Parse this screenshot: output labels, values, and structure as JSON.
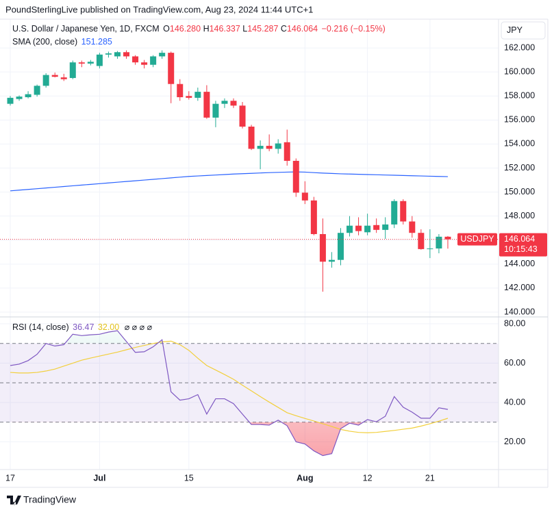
{
  "header": {
    "published": "PoundSterlingLive published on TradingView.com, Aug 23, 2024 11:44 UTC+1",
    "currency": "JPY",
    "footer_logo": "TradingView"
  },
  "legend": {
    "symbol": "U.S. Dollar / Japanese Yen, 1D, FXCM",
    "o_label": "O",
    "open": "146.280",
    "h_label": "H",
    "high": "146.337",
    "l_label": "L",
    "low": "145.287",
    "c_label": "C",
    "close": "146.064",
    "change": "−0.216 (−0.15%)",
    "sma_name": "SMA (200, close)",
    "sma_value": "151.285",
    "rsi_name": "RSI (14, close)",
    "rsi_value": "36.47",
    "rsi_ma_value": "32.00",
    "rsi_extra": "⌀ ⌀ ⌀ ⌀"
  },
  "last_price": {
    "symbol": "USDJPY",
    "price": "146.064",
    "countdown": "10:15:43"
  },
  "chart_data": [
    {
      "type": "candlestick",
      "categories": [
        "17",
        null,
        null,
        null,
        null,
        null,
        null,
        null,
        null,
        null,
        "Jul",
        null,
        null,
        null,
        null,
        null,
        null,
        null,
        null,
        null,
        "15",
        null,
        null,
        null,
        null,
        null,
        null,
        null,
        null,
        null,
        null,
        null,
        null,
        "Aug",
        null,
        null,
        null,
        null,
        null,
        null,
        "12",
        null,
        null,
        null,
        null,
        null,
        null,
        "21",
        null,
        null
      ],
      "open": [
        157.35,
        157.75,
        157.9,
        158.1,
        158.85,
        159.75,
        159.55,
        159.5,
        160.8,
        160.7,
        160.5,
        161.45,
        161.3,
        161.65,
        161.3,
        160.8,
        160.6,
        161.3,
        161.6,
        159.0,
        158.0,
        157.85,
        158.35,
        156.2,
        157.35,
        157.6,
        157.2,
        155.45,
        153.6,
        153.85,
        153.6,
        154.15,
        152.6,
        149.95,
        149.3,
        146.5,
        144.2,
        144.35,
        146.6,
        147.2,
        146.65,
        147.25,
        146.85,
        147.3,
        149.25,
        147.55,
        146.6,
        145.25,
        145.3,
        146.28
      ],
      "high": [
        158.0,
        158.05,
        158.4,
        158.95,
        159.9,
        159.95,
        159.85,
        160.95,
        160.95,
        161.0,
        161.6,
        161.7,
        161.75,
        161.8,
        161.4,
        161.0,
        161.4,
        161.8,
        161.7,
        159.4,
        158.4,
        158.7,
        158.9,
        157.6,
        157.8,
        157.8,
        157.5,
        155.6,
        154.3,
        154.8,
        154.4,
        155.2,
        152.8,
        150.9,
        149.6,
        147.8,
        145.0,
        147.0,
        148.0,
        147.9,
        148.2,
        147.8,
        147.9,
        149.4,
        149.4,
        148.0,
        146.9,
        146.9,
        146.5,
        146.337
      ],
      "low": [
        157.2,
        157.6,
        157.8,
        157.95,
        158.7,
        159.55,
        159.25,
        159.4,
        160.4,
        160.55,
        160.3,
        161.2,
        161.1,
        161.1,
        160.6,
        160.3,
        160.4,
        161.1,
        157.4,
        157.6,
        157.7,
        157.6,
        156.1,
        155.4,
        157.0,
        157.0,
        155.3,
        153.5,
        151.9,
        153.4,
        153.2,
        152.2,
        149.6,
        149.0,
        146.4,
        141.7,
        143.7,
        143.9,
        146.3,
        146.4,
        146.4,
        146.6,
        146.1,
        147.0,
        147.3,
        146.2,
        145.2,
        144.5,
        144.9,
        145.287
      ],
      "close": [
        157.85,
        157.95,
        158.15,
        158.85,
        159.75,
        159.6,
        159.4,
        160.8,
        160.7,
        160.85,
        161.45,
        161.55,
        161.65,
        161.3,
        160.8,
        160.6,
        161.3,
        161.6,
        159.0,
        157.9,
        157.85,
        158.35,
        156.2,
        157.35,
        157.6,
        157.2,
        155.45,
        153.6,
        153.85,
        153.6,
        154.05,
        152.6,
        149.95,
        149.3,
        146.5,
        144.2,
        144.35,
        146.6,
        147.2,
        146.75,
        147.2,
        146.85,
        147.3,
        149.25,
        147.55,
        146.6,
        145.25,
        145.3,
        146.28,
        146.064
      ],
      "up_color": "#22ab94",
      "down_color": "#f23645",
      "series": [
        {
          "name": "SMA (200, close)",
          "color": "#2962ff",
          "values": [
            150.1,
            150.16,
            150.22,
            150.28,
            150.34,
            150.4,
            150.46,
            150.52,
            150.58,
            150.64,
            150.7,
            150.76,
            150.82,
            150.88,
            150.94,
            151.0,
            151.06,
            151.12,
            151.18,
            151.24,
            151.3,
            151.34,
            151.38,
            151.42,
            151.46,
            151.5,
            151.53,
            151.56,
            151.59,
            151.62,
            151.64,
            151.66,
            151.68,
            151.66,
            151.62,
            151.58,
            151.55,
            151.52,
            151.5,
            151.48,
            151.46,
            151.44,
            151.42,
            151.4,
            151.38,
            151.36,
            151.34,
            151.32,
            151.3,
            151.285
          ]
        }
      ],
      "ylim": [
        139.6,
        164.4
      ],
      "yticks": [
        {
          "value": 140,
          "label": "140.000"
        },
        {
          "value": 142,
          "label": "142.000"
        },
        {
          "value": 144,
          "label": "144.000"
        },
        {
          "value": 146,
          "label": "146.000"
        },
        {
          "value": 148,
          "label": "148.000"
        },
        {
          "value": 150,
          "label": "150.000"
        },
        {
          "value": 152,
          "label": "152.000"
        },
        {
          "value": 154,
          "label": "154.000"
        },
        {
          "value": 156,
          "label": "156.000"
        },
        {
          "value": 158,
          "label": "158.000"
        },
        {
          "value": 160,
          "label": "160.000"
        },
        {
          "value": 162,
          "label": "162.000"
        }
      ],
      "grid": true
    },
    {
      "type": "line",
      "series": [
        {
          "name": "RSI (14, close)",
          "color": "#7e57c2",
          "values": [
            58.8,
            59.5,
            61.3,
            64.5,
            70.0,
            68.7,
            69.4,
            74.7,
            74.0,
            74.4,
            74.7,
            75.8,
            76.5,
            71.0,
            65.5,
            65.8,
            68.3,
            71.9,
            45.4,
            41.2,
            41.9,
            44.0,
            34.1,
            41.9,
            41.9,
            39.4,
            34.1,
            28.8,
            28.8,
            28.5,
            31.0,
            28.2,
            20.0,
            18.9,
            15.4,
            13.0,
            14.0,
            26.7,
            29.5,
            28.5,
            31.3,
            30.2,
            33.0,
            43.0,
            37.6,
            35.1,
            32.0,
            32.0,
            37.3,
            36.47
          ]
        },
        {
          "name": "RSI-based MA",
          "color": "#f2cf3b",
          "values": [
            55.3,
            55.0,
            55.0,
            55.3,
            56.0,
            57.0,
            58.5,
            60.0,
            61.5,
            62.6,
            63.6,
            64.6,
            65.6,
            66.8,
            68.0,
            69.0,
            70.0,
            70.8,
            71.2,
            69.4,
            66.5,
            62.5,
            58.8,
            56.5,
            54.2,
            51.8,
            48.8,
            45.9,
            43.0,
            40.2,
            37.5,
            34.8,
            33.3,
            31.9,
            30.6,
            29.2,
            27.8,
            26.3,
            25.4,
            24.8,
            24.6,
            24.8,
            25.3,
            25.8,
            26.4,
            27.0,
            28.0,
            29.2,
            30.5,
            32.0
          ]
        }
      ],
      "levels": [
        30,
        50,
        70
      ],
      "band_color": "#7e57c2",
      "ylim": [
        5.9,
        83.5
      ],
      "yticks": [
        {
          "value": 20,
          "label": "20.00"
        },
        {
          "value": 40,
          "label": "40.00"
        },
        {
          "value": 60,
          "label": "60.00"
        },
        {
          "value": 80,
          "label": "80.00"
        }
      ],
      "grid": true
    }
  ]
}
